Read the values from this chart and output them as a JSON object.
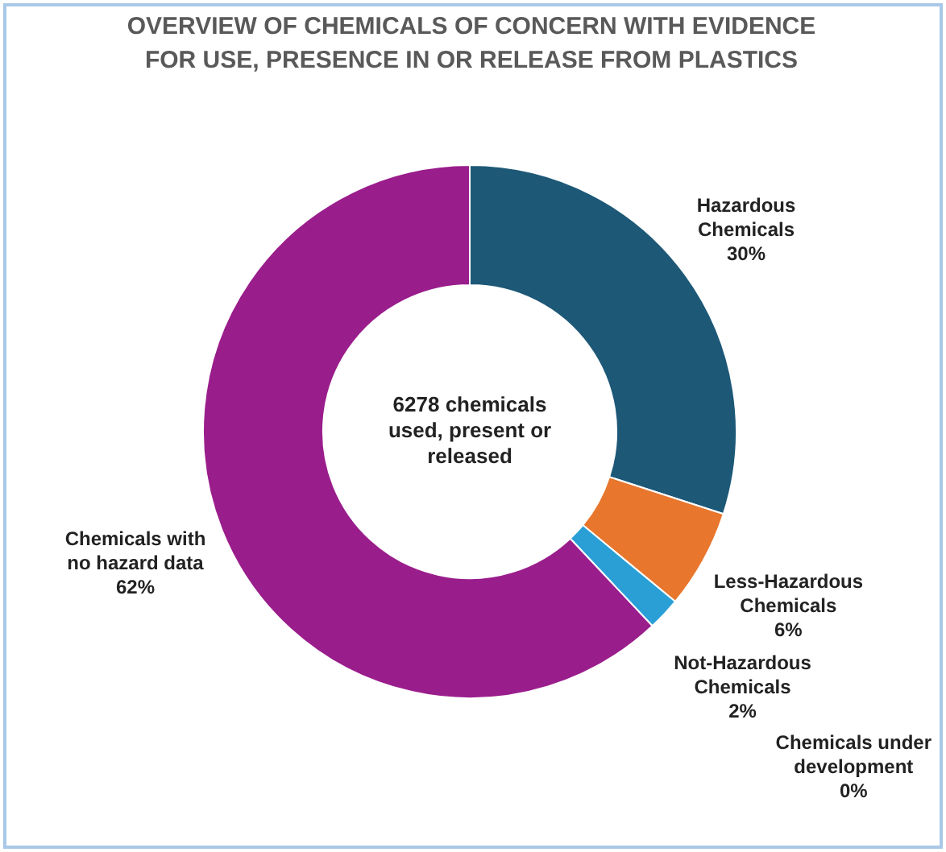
{
  "chart_data": {
    "type": "donut",
    "title": "OVERVIEW OF CHEMICALS OF CONCERN WITH EVIDENCE FOR USE, PRESENCE IN OR RELEASE FROM PLASTICS",
    "categories": [
      "Hazardous Chemicals",
      "Less-Hazardous Chemicals",
      "Chemicals under development",
      "Not-Hazardous Chemicals",
      "Chemicals with no hazard data"
    ],
    "values": [
      30,
      6,
      0,
      2,
      62
    ],
    "colors": [
      "#1d5877",
      "#e8762d",
      "#1f6b5a",
      "#2a9fd6",
      "#9a1d8c"
    ],
    "value_labels": [
      "30%",
      "6%",
      "0%",
      "2%",
      "62%"
    ],
    "annotations": [
      "6278 chemicals used, present or released"
    ],
    "legend": false
  }
}
